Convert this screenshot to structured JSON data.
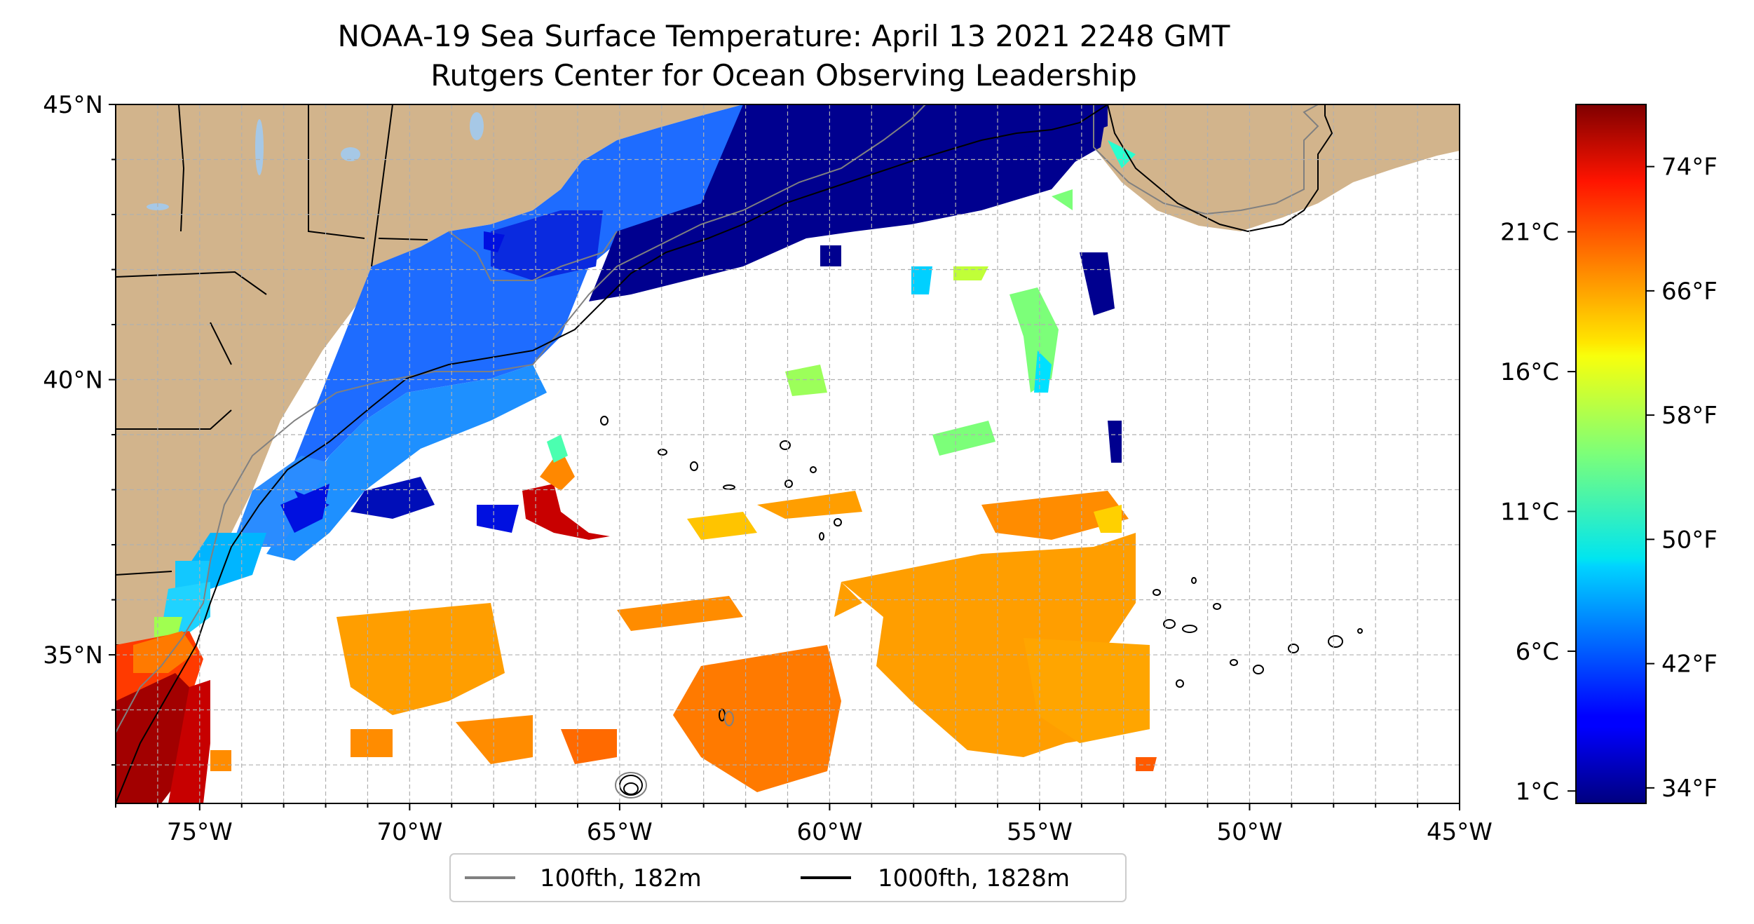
{
  "title": {
    "line1": "NOAA-19 Sea Surface Temperature: April 13 2021 2248 GMT",
    "line2": "Rutgers Center for Ocean Observing Leadership"
  },
  "map": {
    "lon_range": [
      -77,
      -45
    ],
    "lat_range": [
      32.3,
      45
    ],
    "x_ticks": [
      {
        "lon": -75,
        "label": "75°W"
      },
      {
        "lon": -70,
        "label": "70°W"
      },
      {
        "lon": -65,
        "label": "65°W"
      },
      {
        "lon": -60,
        "label": "60°W"
      },
      {
        "lon": -55,
        "label": "55°W"
      },
      {
        "lon": -50,
        "label": "50°W"
      },
      {
        "lon": -45,
        "label": "45°W"
      }
    ],
    "y_ticks": [
      {
        "lat": 45,
        "label": "45°N"
      },
      {
        "lat": 40,
        "label": "40°N"
      },
      {
        "lat": 35,
        "label": "35°N"
      }
    ],
    "gridlines": "dashed, 1° spacing",
    "colors": {
      "land": "#d2b48c",
      "lakes": "#a6c8e6",
      "no_data": "#ffffff"
    }
  },
  "colorbar": {
    "colormap": "jet",
    "range_f": [
      33,
      78
    ],
    "fahrenheit_ticks": [
      {
        "value": 34,
        "label": "34°F"
      },
      {
        "value": 42,
        "label": "42°F"
      },
      {
        "value": 50,
        "label": "50°F"
      },
      {
        "value": 58,
        "label": "58°F"
      },
      {
        "value": 66,
        "label": "66°F"
      },
      {
        "value": 74,
        "label": "74°F"
      }
    ],
    "celsius_ticks": [
      {
        "value": 1,
        "label": "1°C"
      },
      {
        "value": 6,
        "label": "6°C"
      },
      {
        "value": 11,
        "label": "11°C"
      },
      {
        "value": 16,
        "label": "16°C"
      },
      {
        "value": 21,
        "label": "21°C"
      }
    ]
  },
  "legend": {
    "items": [
      {
        "label": "100fth, 182m",
        "color": "#808080"
      },
      {
        "label": "1000fth, 1828m",
        "color": "#000000"
      }
    ]
  }
}
